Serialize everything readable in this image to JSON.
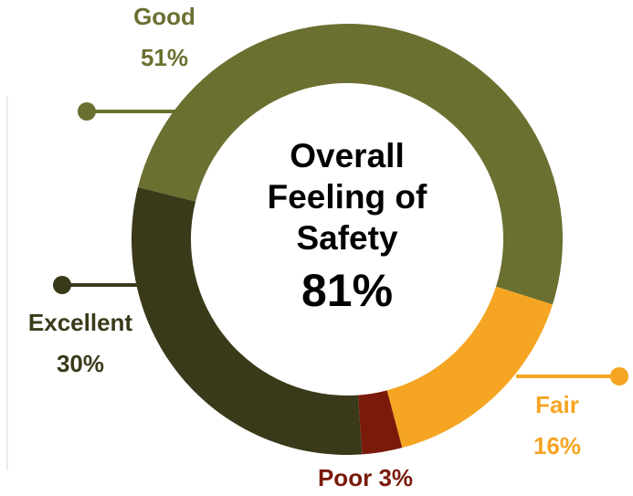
{
  "chart_data": {
    "type": "donut",
    "title": "Overall Feeling of Safety",
    "center_label": "81%",
    "categories": [
      "Good",
      "Fair",
      "Poor",
      "Excellent"
    ],
    "values": [
      51,
      16,
      3,
      30
    ],
    "value_labels": [
      "51%",
      "16%",
      "3%",
      "30%"
    ],
    "colors": [
      "#6b7031",
      "#f5a522",
      "#7a1a0b",
      "#3a3a1b"
    ]
  }
}
